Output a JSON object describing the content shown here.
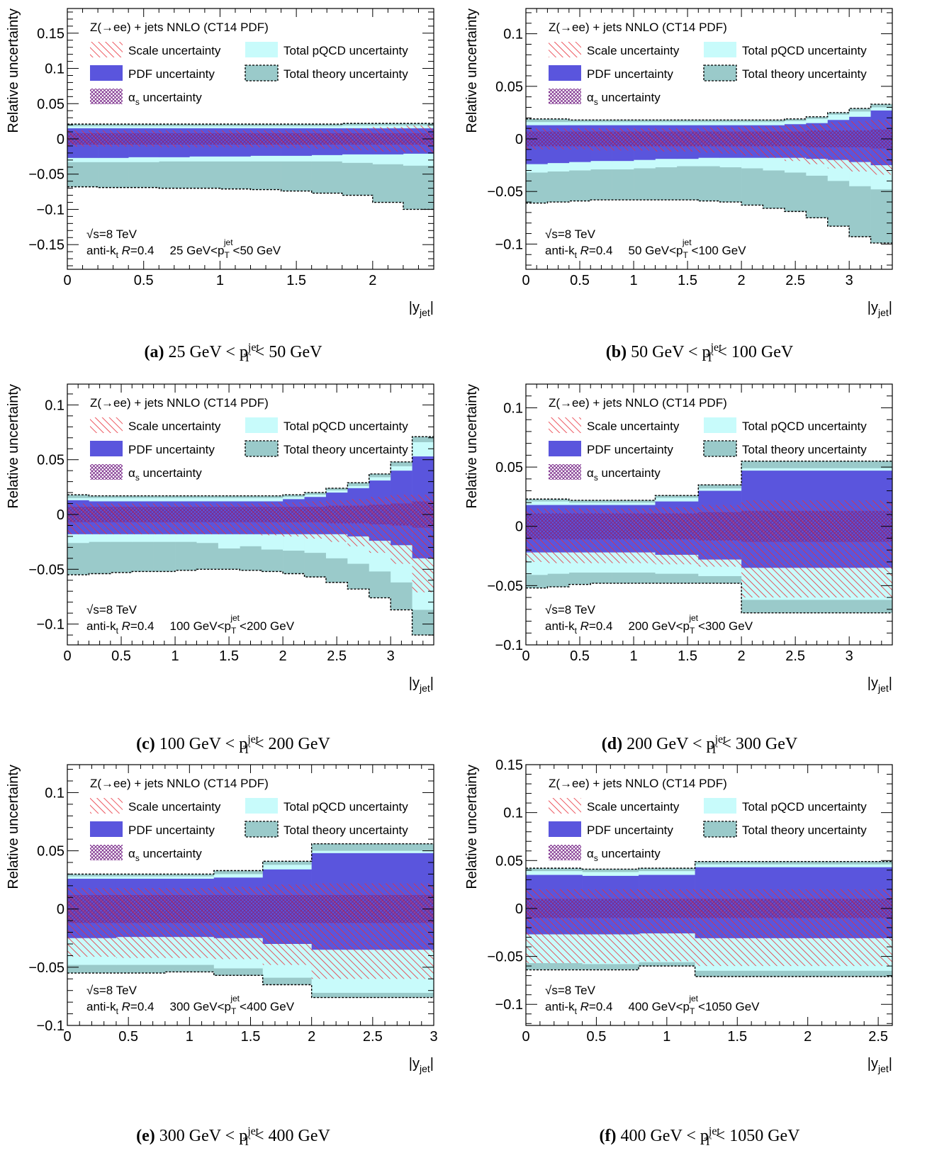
{
  "legend": {
    "title": "Z(→ee) + jets NNLO (CT14 PDF)",
    "scale": "Scale uncertainty",
    "pdf": "PDF uncertainty",
    "alphas": "uncertainty",
    "alphas_symbol": "α",
    "alphas_sub": "s",
    "pqcd": "Total pQCD uncertainty",
    "theory": "Total theory uncertainty"
  },
  "annotation": {
    "sqrts": "√s=8 TeV",
    "algo_prefix": "anti-k",
    "algo_sub": "t",
    "algo_R": "R",
    "algo_val": "=0.4"
  },
  "colors": {
    "scale_hatch": "#e8303a",
    "pdf": "#5a55dd",
    "alphas_hatch": "#7a2a8a",
    "pqcd": "#c8fbfb",
    "theory": "#9acaca"
  },
  "chart_data": [
    {
      "type": "area",
      "panel": "a",
      "caption_label": "(a)",
      "caption_text": "25 GeV < p",
      "caption_sup": "jet",
      "caption_sub": "T",
      "caption_tail": " < 50 GeV",
      "range_label": [
        "25 GeV<p",
        "<50 GeV"
      ],
      "ylabel": "Relative uncertainty",
      "xlabel": "|y",
      "xlabel_sub": "jet",
      "xlim": [
        0,
        2.4
      ],
      "ylim": [
        -0.185,
        0.185
      ],
      "xticks": [
        "0",
        "0.5",
        "1",
        "1.5",
        "2"
      ],
      "xtick_vals": [
        0,
        0.5,
        1,
        1.5,
        2
      ],
      "yticks": [
        "−0.15",
        "−0.1",
        "−0.05",
        "0",
        "0.05",
        "0.1",
        "0.15"
      ],
      "ytick_vals": [
        -0.15,
        -0.1,
        -0.05,
        0,
        0.05,
        0.1,
        0.15
      ],
      "bins": [
        0,
        0.2,
        0.4,
        0.6,
        0.8,
        1.0,
        1.2,
        1.4,
        1.6,
        1.8,
        2.0,
        2.2,
        2.4
      ],
      "theory_up": [
        0.021,
        0.021,
        0.021,
        0.021,
        0.021,
        0.021,
        0.021,
        0.021,
        0.021,
        0.022,
        0.022,
        0.022
      ],
      "theory_dn": [
        -0.068,
        -0.069,
        -0.069,
        -0.07,
        -0.07,
        -0.071,
        -0.072,
        -0.074,
        -0.077,
        -0.08,
        -0.09,
        -0.1
      ],
      "pqcd_up": [
        0.018,
        0.018,
        0.018,
        0.018,
        0.018,
        0.018,
        0.018,
        0.018,
        0.018,
        0.019,
        0.019,
        0.019
      ],
      "pqcd_dn": [
        -0.033,
        -0.033,
        -0.033,
        -0.032,
        -0.032,
        -0.032,
        -0.032,
        -0.032,
        -0.032,
        -0.034,
        -0.036,
        -0.038
      ],
      "pdf_up": [
        0.015,
        0.015,
        0.015,
        0.015,
        0.015,
        0.015,
        0.015,
        0.015,
        0.015,
        0.015,
        0.015,
        0.015
      ],
      "pdf_dn": [
        -0.027,
        -0.027,
        -0.026,
        -0.026,
        -0.025,
        -0.025,
        -0.024,
        -0.024,
        -0.023,
        -0.022,
        -0.022,
        -0.021
      ],
      "scale_up": [
        0.012,
        0.012,
        0.012,
        0.012,
        0.012,
        0.012,
        0.012,
        0.012,
        0.013,
        0.015,
        0.017,
        0.019
      ],
      "scale_dn": [
        -0.011,
        -0.011,
        -0.011,
        -0.012,
        -0.012,
        -0.012,
        -0.012,
        -0.013,
        -0.014,
        -0.016,
        -0.018,
        -0.019
      ],
      "alphas_up": [
        0.008,
        0.008,
        0.008,
        0.008,
        0.008,
        0.008,
        0.008,
        0.008,
        0.008,
        0.008,
        0.008,
        0.008
      ],
      "alphas_dn": [
        -0.008,
        -0.008,
        -0.008,
        -0.008,
        -0.008,
        -0.008,
        -0.008,
        -0.008,
        -0.008,
        -0.008,
        -0.008,
        -0.008
      ]
    },
    {
      "type": "area",
      "panel": "b",
      "caption_label": "(b)",
      "caption_text": "50 GeV < p",
      "caption_sup": "jet",
      "caption_sub": "T",
      "caption_tail": " < 100 GeV",
      "range_label": [
        "50 GeV<p",
        "<100 GeV"
      ],
      "ylabel": "Relative uncertainty",
      "xlabel": "|y",
      "xlabel_sub": "jet",
      "xlim": [
        0,
        3.4
      ],
      "ylim": [
        -0.124,
        0.124
      ],
      "xticks": [
        "0",
        "0.5",
        "1",
        "1.5",
        "2",
        "2.5",
        "3"
      ],
      "xtick_vals": [
        0,
        0.5,
        1,
        1.5,
        2,
        2.5,
        3
      ],
      "yticks": [
        "−0.1",
        "−0.05",
        "0",
        "0.05",
        "0.1"
      ],
      "ytick_vals": [
        -0.1,
        -0.05,
        0,
        0.05,
        0.1
      ],
      "bins": [
        0,
        0.2,
        0.4,
        0.6,
        0.8,
        1.0,
        1.2,
        1.4,
        1.6,
        1.8,
        2.0,
        2.2,
        2.4,
        2.6,
        2.8,
        3.0,
        3.2,
        3.4
      ],
      "theory_up": [
        0.019,
        0.019,
        0.018,
        0.018,
        0.018,
        0.018,
        0.018,
        0.018,
        0.018,
        0.018,
        0.018,
        0.018,
        0.019,
        0.021,
        0.025,
        0.029,
        0.033
      ],
      "theory_dn": [
        -0.061,
        -0.06,
        -0.059,
        -0.058,
        -0.058,
        -0.058,
        -0.058,
        -0.058,
        -0.059,
        -0.06,
        -0.063,
        -0.066,
        -0.069,
        -0.075,
        -0.083,
        -0.093,
        -0.099
      ],
      "pqcd_up": [
        0.016,
        0.016,
        0.016,
        0.016,
        0.016,
        0.016,
        0.016,
        0.016,
        0.016,
        0.016,
        0.016,
        0.016,
        0.017,
        0.019,
        0.023,
        0.026,
        0.03
      ],
      "pqcd_dn": [
        -0.032,
        -0.031,
        -0.03,
        -0.029,
        -0.029,
        -0.028,
        -0.027,
        -0.026,
        -0.026,
        -0.027,
        -0.028,
        -0.03,
        -0.032,
        -0.035,
        -0.04,
        -0.045,
        -0.048
      ],
      "pdf_up": [
        0.013,
        0.013,
        0.013,
        0.013,
        0.013,
        0.013,
        0.013,
        0.013,
        0.013,
        0.013,
        0.013,
        0.013,
        0.014,
        0.015,
        0.018,
        0.021,
        0.027
      ],
      "pdf_dn": [
        -0.024,
        -0.023,
        -0.022,
        -0.021,
        -0.021,
        -0.02,
        -0.019,
        -0.019,
        -0.018,
        -0.018,
        -0.018,
        -0.018,
        -0.018,
        -0.019,
        -0.02,
        -0.022,
        -0.025
      ],
      "scale_up": [
        0.01,
        0.01,
        0.01,
        0.01,
        0.01,
        0.01,
        0.01,
        0.01,
        0.011,
        0.011,
        0.012,
        0.012,
        0.013,
        0.014,
        0.016,
        0.017,
        0.018
      ],
      "scale_dn": [
        -0.01,
        -0.01,
        -0.01,
        -0.011,
        -0.011,
        -0.011,
        -0.012,
        -0.012,
        -0.013,
        -0.014,
        -0.016,
        -0.018,
        -0.021,
        -0.024,
        -0.028,
        -0.031,
        -0.034
      ],
      "alphas_up": [
        0.007,
        0.007,
        0.007,
        0.007,
        0.007,
        0.007,
        0.007,
        0.007,
        0.007,
        0.007,
        0.007,
        0.007,
        0.007,
        0.008,
        0.008,
        0.008,
        0.009
      ],
      "alphas_dn": [
        -0.007,
        -0.007,
        -0.007,
        -0.007,
        -0.007,
        -0.007,
        -0.007,
        -0.007,
        -0.007,
        -0.007,
        -0.007,
        -0.007,
        -0.007,
        -0.008,
        -0.008,
        -0.008,
        -0.009
      ]
    },
    {
      "type": "area",
      "panel": "c",
      "caption_label": "(c)",
      "caption_text": "100 GeV < p",
      "caption_sup": "jet",
      "caption_sub": "T",
      "caption_tail": " < 200 GeV",
      "range_label": [
        "100 GeV<p",
        "<200 GeV"
      ],
      "ylabel": "Relative uncertainty",
      "xlabel": "|y",
      "xlabel_sub": "jet",
      "xlim": [
        0,
        3.4
      ],
      "ylim": [
        -0.119,
        0.119
      ],
      "xticks": [
        "0",
        "0.5",
        "1",
        "1.5",
        "2",
        "2.5",
        "3"
      ],
      "xtick_vals": [
        0,
        0.5,
        1,
        1.5,
        2,
        2.5,
        3
      ],
      "yticks": [
        "−0.1",
        "−0.05",
        "0",
        "0.05",
        "0.1"
      ],
      "ytick_vals": [
        -0.1,
        -0.05,
        0,
        0.05,
        0.1
      ],
      "bins": [
        0,
        0.2,
        0.4,
        0.6,
        0.8,
        1.0,
        1.2,
        1.4,
        1.6,
        1.8,
        2.0,
        2.2,
        2.4,
        2.6,
        2.8,
        3.0,
        3.2,
        3.4
      ],
      "theory_up": [
        0.018,
        0.017,
        0.017,
        0.017,
        0.017,
        0.017,
        0.017,
        0.017,
        0.017,
        0.017,
        0.018,
        0.02,
        0.024,
        0.029,
        0.037,
        0.048,
        0.071
      ],
      "theory_dn": [
        -0.055,
        -0.054,
        -0.053,
        -0.052,
        -0.052,
        -0.051,
        -0.05,
        -0.05,
        -0.051,
        -0.052,
        -0.054,
        -0.057,
        -0.062,
        -0.068,
        -0.076,
        -0.087,
        -0.11
      ],
      "pqcd_up": [
        0.015,
        0.015,
        0.015,
        0.015,
        0.015,
        0.015,
        0.015,
        0.015,
        0.015,
        0.015,
        0.016,
        0.018,
        0.022,
        0.026,
        0.034,
        0.044,
        0.066
      ],
      "pqcd_dn": [
        -0.026,
        -0.025,
        -0.025,
        -0.025,
        -0.025,
        -0.025,
        -0.026,
        -0.031,
        -0.029,
        -0.032,
        -0.033,
        -0.035,
        -0.04,
        -0.045,
        -0.052,
        -0.062,
        -0.087
      ],
      "pdf_up": [
        0.013,
        0.012,
        0.012,
        0.012,
        0.012,
        0.012,
        0.012,
        0.012,
        0.012,
        0.012,
        0.014,
        0.016,
        0.02,
        0.024,
        0.031,
        0.04,
        0.053
      ],
      "pdf_dn": [
        -0.018,
        -0.018,
        -0.018,
        -0.018,
        -0.018,
        -0.018,
        -0.018,
        -0.018,
        -0.018,
        -0.018,
        -0.018,
        -0.018,
        -0.018,
        -0.02,
        -0.024,
        -0.028,
        -0.04
      ],
      "scale_up": [
        0.01,
        0.01,
        0.01,
        0.01,
        0.01,
        0.01,
        0.01,
        0.01,
        0.01,
        0.011,
        0.011,
        0.012,
        0.013,
        0.014,
        0.016,
        0.018,
        0.018
      ],
      "scale_dn": [
        -0.018,
        -0.018,
        -0.018,
        -0.018,
        -0.018,
        -0.018,
        -0.018,
        -0.018,
        -0.018,
        -0.019,
        -0.02,
        -0.022,
        -0.025,
        -0.029,
        -0.035,
        -0.045,
        -0.071
      ],
      "alphas_up": [
        0.007,
        0.007,
        0.007,
        0.007,
        0.007,
        0.007,
        0.007,
        0.007,
        0.007,
        0.007,
        0.007,
        0.007,
        0.008,
        0.008,
        0.009,
        0.01,
        0.012
      ],
      "alphas_dn": [
        -0.007,
        -0.007,
        -0.007,
        -0.007,
        -0.007,
        -0.007,
        -0.007,
        -0.007,
        -0.007,
        -0.007,
        -0.007,
        -0.007,
        -0.008,
        -0.008,
        -0.009,
        -0.01,
        -0.012
      ]
    },
    {
      "type": "area",
      "panel": "d",
      "caption_label": "(d)",
      "caption_text": "200 GeV < p",
      "caption_sup": "jet",
      "caption_sub": "T",
      "caption_tail": " < 300 GeV",
      "range_label": [
        "200 GeV<p",
        "<300 GeV"
      ],
      "ylabel": "Relative uncertainty",
      "xlabel": "|y",
      "xlabel_sub": "jet",
      "xlim": [
        0,
        3.4
      ],
      "ylim": [
        -0.1,
        0.12
      ],
      "xticks": [
        "0",
        "0.5",
        "1",
        "1.5",
        "2",
        "2.5",
        "3"
      ],
      "xtick_vals": [
        0,
        0.5,
        1,
        1.5,
        2,
        2.5,
        3
      ],
      "yticks": [
        "−0.1",
        "−0.05",
        "0",
        "0.05",
        "0.1"
      ],
      "ytick_vals": [
        -0.1,
        -0.05,
        0,
        0.05,
        0.1
      ],
      "bins": [
        0,
        0.2,
        0.4,
        0.6,
        0.8,
        1.2,
        1.6,
        2.0,
        2.4,
        3.4
      ],
      "theory_up": [
        0.023,
        0.023,
        0.022,
        0.022,
        0.022,
        0.026,
        0.035,
        0.055,
        0.055
      ],
      "theory_dn": [
        -0.052,
        -0.051,
        -0.049,
        -0.048,
        -0.048,
        -0.048,
        -0.048,
        -0.073,
        -0.073
      ],
      "pqcd_up": [
        0.021,
        0.021,
        0.02,
        0.02,
        0.02,
        0.024,
        0.032,
        0.049,
        0.049
      ],
      "pqcd_dn": [
        -0.041,
        -0.04,
        -0.039,
        -0.039,
        -0.039,
        -0.04,
        -0.042,
        -0.062,
        -0.062
      ],
      "pdf_up": [
        0.018,
        0.018,
        0.018,
        0.018,
        0.018,
        0.021,
        0.03,
        0.047,
        0.047
      ],
      "pdf_dn": [
        -0.022,
        -0.022,
        -0.022,
        -0.022,
        -0.022,
        -0.024,
        -0.028,
        -0.035,
        -0.035
      ],
      "scale_up": [
        0.015,
        0.015,
        0.015,
        0.015,
        0.015,
        0.016,
        0.018,
        0.022,
        0.022
      ],
      "scale_dn": [
        -0.03,
        -0.031,
        -0.031,
        -0.031,
        -0.031,
        -0.032,
        -0.034,
        -0.06,
        -0.06
      ],
      "alphas_up": [
        0.011,
        0.011,
        0.011,
        0.011,
        0.011,
        0.011,
        0.012,
        0.013,
        0.013
      ],
      "alphas_dn": [
        -0.011,
        -0.011,
        -0.011,
        -0.011,
        -0.011,
        -0.011,
        -0.012,
        -0.013,
        -0.013
      ]
    },
    {
      "type": "area",
      "panel": "e",
      "caption_label": "(e)",
      "caption_text": "300 GeV < p",
      "caption_sup": "jet",
      "caption_sub": "T",
      "caption_tail": " < 400 GeV",
      "range_label": [
        "300 GeV<p",
        "<400 GeV"
      ],
      "ylabel": "Relative uncertainty",
      "xlabel": "|y",
      "xlabel_sub": "jet",
      "xlim": [
        0,
        3.0
      ],
      "ylim": [
        -0.1,
        0.124
      ],
      "xticks": [
        "0",
        "0.5",
        "1",
        "1.5",
        "2",
        "2.5",
        "3"
      ],
      "xtick_vals": [
        0,
        0.5,
        1,
        1.5,
        2,
        2.5,
        3
      ],
      "yticks": [
        "−0.1",
        "−0.05",
        "0",
        "0.05",
        "0.1"
      ],
      "ytick_vals": [
        -0.1,
        -0.05,
        0,
        0.05,
        0.1
      ],
      "bins": [
        0,
        0.4,
        0.8,
        1.2,
        1.6,
        2.0,
        3.0
      ],
      "theory_up": [
        0.03,
        0.03,
        0.03,
        0.033,
        0.041,
        0.056
      ],
      "theory_dn": [
        -0.055,
        -0.055,
        -0.054,
        -0.057,
        -0.065,
        -0.076
      ],
      "pqcd_up": [
        0.028,
        0.028,
        0.028,
        0.03,
        0.038,
        0.05
      ],
      "pqcd_dn": [
        -0.048,
        -0.048,
        -0.048,
        -0.051,
        -0.059,
        -0.072
      ],
      "pdf_up": [
        0.026,
        0.026,
        0.026,
        0.027,
        0.034,
        0.048
      ],
      "pdf_dn": [
        -0.025,
        -0.024,
        -0.024,
        -0.025,
        -0.03,
        -0.035
      ],
      "scale_up": [
        0.018,
        0.018,
        0.018,
        0.019,
        0.021,
        0.022
      ],
      "scale_dn": [
        -0.041,
        -0.042,
        -0.042,
        -0.043,
        -0.048,
        -0.06
      ],
      "alphas_up": [
        0.012,
        0.012,
        0.012,
        0.012,
        0.012,
        0.012
      ],
      "alphas_dn": [
        -0.012,
        -0.012,
        -0.012,
        -0.012,
        -0.012,
        -0.012
      ]
    },
    {
      "type": "area",
      "panel": "f",
      "caption_label": "(f)",
      "caption_text": "400 GeV < p",
      "caption_sup": "jet",
      "caption_sub": "T",
      "caption_tail": " < 1050 GeV",
      "range_label": [
        "400 GeV<p",
        "<1050 GeV"
      ],
      "ylabel": "Relative uncertainty",
      "xlabel": "|y",
      "xlabel_sub": "jet",
      "xlim": [
        0,
        2.6
      ],
      "ylim": [
        -0.122,
        0.15
      ],
      "xticks": [
        "0",
        "0.5",
        "1",
        "1.5",
        "2",
        "2.5"
      ],
      "xtick_vals": [
        0,
        0.5,
        1,
        1.5,
        2,
        2.5
      ],
      "yticks": [
        "−0.1",
        "−0.05",
        "0",
        "0.05",
        "0.1",
        "0.15"
      ],
      "ytick_vals": [
        -0.1,
        -0.05,
        0,
        0.05,
        0.1,
        0.15
      ],
      "bins": [
        0,
        0.4,
        0.8,
        1.2,
        2.6
      ],
      "theory_up": [
        0.042,
        0.041,
        0.042,
        0.049
      ],
      "theory_dn": [
        -0.064,
        -0.064,
        -0.06,
        -0.071
      ],
      "pqcd_up": [
        0.039,
        0.038,
        0.039,
        0.046
      ],
      "pqcd_dn": [
        -0.057,
        -0.058,
        -0.056,
        -0.065
      ],
      "pdf_up": [
        0.035,
        0.034,
        0.035,
        0.043
      ],
      "pdf_dn": [
        -0.027,
        -0.027,
        -0.026,
        -0.031
      ],
      "scale_up": [
        0.02,
        0.02,
        0.02,
        0.02
      ],
      "scale_dn": [
        -0.057,
        -0.057,
        -0.055,
        -0.06
      ],
      "alphas_up": [
        0.01,
        0.01,
        0.01,
        0.01
      ],
      "alphas_dn": [
        -0.01,
        -0.01,
        -0.01,
        -0.01
      ]
    }
  ]
}
